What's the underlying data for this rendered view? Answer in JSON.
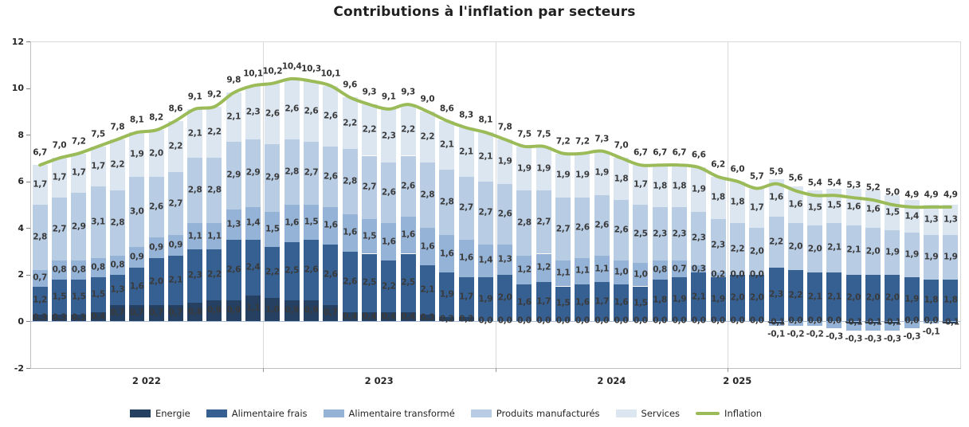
{
  "title": "Contributions à l'inflation par secteurs",
  "chart_data": {
    "type": "bar",
    "subtype": "stacked-columns-with-line",
    "x_axis": {
      "year_labels": [
        "2 022",
        "2 023",
        "2 024",
        "2 025"
      ],
      "months_per_year": 12
    },
    "y_axis": {
      "min": -2,
      "max": 12,
      "step": 2,
      "tick_labels": [
        "12",
        "10",
        "8",
        "6",
        "4",
        "2",
        "0",
        "-2"
      ]
    },
    "number_format": "one-decimal-comma",
    "series": [
      {
        "name": "Energie",
        "color": "#254061",
        "values": [
          0.3,
          0.3,
          0.3,
          0.4,
          0.7,
          0.7,
          0.7,
          0.7,
          0.8,
          0.9,
          0.9,
          1.1,
          1.0,
          0.9,
          0.9,
          0.7,
          0.4,
          0.4,
          0.4,
          0.4,
          0.3,
          0.2,
          0.2,
          0.0,
          0.0,
          0.0,
          0.0,
          0.0,
          0.0,
          0.0,
          0.0,
          0.0,
          0.0,
          0.0,
          0.0,
          0.0,
          0.0,
          0.0,
          -0.1,
          0.0,
          0.0,
          0.0,
          -0.1,
          -0.1,
          -0.1,
          0.0,
          0.0,
          -0.1
        ]
      },
      {
        "name": "Alimentaire frais",
        "color": "#366092",
        "values": [
          1.2,
          1.5,
          1.5,
          1.5,
          1.3,
          1.6,
          2.0,
          2.1,
          2.3,
          2.2,
          2.6,
          2.4,
          2.2,
          2.5,
          2.6,
          2.6,
          2.6,
          2.5,
          2.2,
          2.5,
          2.1,
          1.9,
          1.7,
          1.9,
          2.0,
          1.6,
          1.7,
          1.5,
          1.6,
          1.7,
          1.6,
          1.5,
          1.8,
          1.9,
          2.1,
          1.9,
          2.0,
          2.0,
          2.3,
          2.2,
          2.1,
          2.1,
          2.0,
          2.0,
          2.0,
          1.9,
          1.8,
          1.8
        ]
      },
      {
        "name": "Alimentaire transformé",
        "color": "#95B3D7",
        "values": [
          0.7,
          0.8,
          0.8,
          0.8,
          0.8,
          0.9,
          0.9,
          0.9,
          1.1,
          1.1,
          1.3,
          1.4,
          1.5,
          1.6,
          1.5,
          1.6,
          1.6,
          1.5,
          1.6,
          1.6,
          1.6,
          1.6,
          1.6,
          1.4,
          1.3,
          1.2,
          1.2,
          1.1,
          1.1,
          1.1,
          1.0,
          1.0,
          0.8,
          0.7,
          0.3,
          0.2,
          0.0,
          0.0,
          -0.1,
          -0.2,
          -0.2,
          -0.3,
          -0.3,
          -0.3,
          -0.3,
          -0.3,
          -0.1,
          0.0
        ]
      },
      {
        "name": "Produits manufacturés",
        "color": "#B8CCE4",
        "values": [
          2.8,
          2.7,
          2.9,
          3.1,
          2.8,
          3.0,
          2.6,
          2.7,
          2.8,
          2.8,
          2.9,
          2.9,
          2.9,
          2.8,
          2.7,
          2.6,
          2.8,
          2.7,
          2.6,
          2.6,
          2.8,
          2.8,
          2.7,
          2.7,
          2.6,
          2.8,
          2.7,
          2.7,
          2.6,
          2.6,
          2.6,
          2.5,
          2.3,
          2.3,
          2.3,
          2.3,
          2.2,
          2.0,
          2.2,
          2.0,
          2.0,
          2.1,
          2.1,
          2.0,
          1.9,
          1.9,
          1.9,
          1.9
        ]
      },
      {
        "name": "Services",
        "color": "#DCE6F1",
        "values": [
          1.7,
          1.7,
          1.7,
          1.7,
          2.2,
          1.9,
          2.0,
          2.2,
          2.1,
          2.2,
          2.1,
          2.3,
          2.6,
          2.6,
          2.6,
          2.6,
          2.2,
          2.2,
          2.3,
          2.2,
          2.2,
          2.1,
          2.1,
          2.1,
          1.9,
          1.9,
          1.9,
          1.9,
          1.9,
          1.9,
          1.8,
          1.7,
          1.8,
          1.8,
          1.9,
          1.8,
          1.8,
          1.7,
          1.6,
          1.6,
          1.5,
          1.5,
          1.6,
          1.6,
          1.5,
          1.4,
          1.3,
          1.3
        ]
      }
    ],
    "line": {
      "name": "Inflation",
      "color": "#9BBB59",
      "values": [
        6.7,
        7.0,
        7.2,
        7.5,
        7.8,
        8.1,
        8.2,
        8.6,
        9.1,
        9.2,
        9.8,
        10.1,
        10.2,
        10.4,
        10.3,
        10.1,
        9.6,
        9.3,
        9.1,
        9.3,
        9.0,
        8.6,
        8.3,
        8.1,
        7.8,
        7.5,
        7.5,
        7.2,
        7.2,
        7.3,
        7.0,
        6.7,
        6.7,
        6.7,
        6.6,
        6.2,
        6.0,
        5.7,
        5.9,
        5.6,
        5.4,
        5.4,
        5.3,
        5.2,
        5.0,
        4.9,
        4.9,
        4.9
      ]
    },
    "hidden_segment_labels": [
      {
        "series": "Alimentaire transformé",
        "index": 47
      }
    ]
  },
  "legend": {
    "items": [
      "Energie",
      "Alimentaire frais",
      "Alimentaire transformé",
      "Produits manufacturés",
      "Services",
      "Inflation"
    ]
  }
}
